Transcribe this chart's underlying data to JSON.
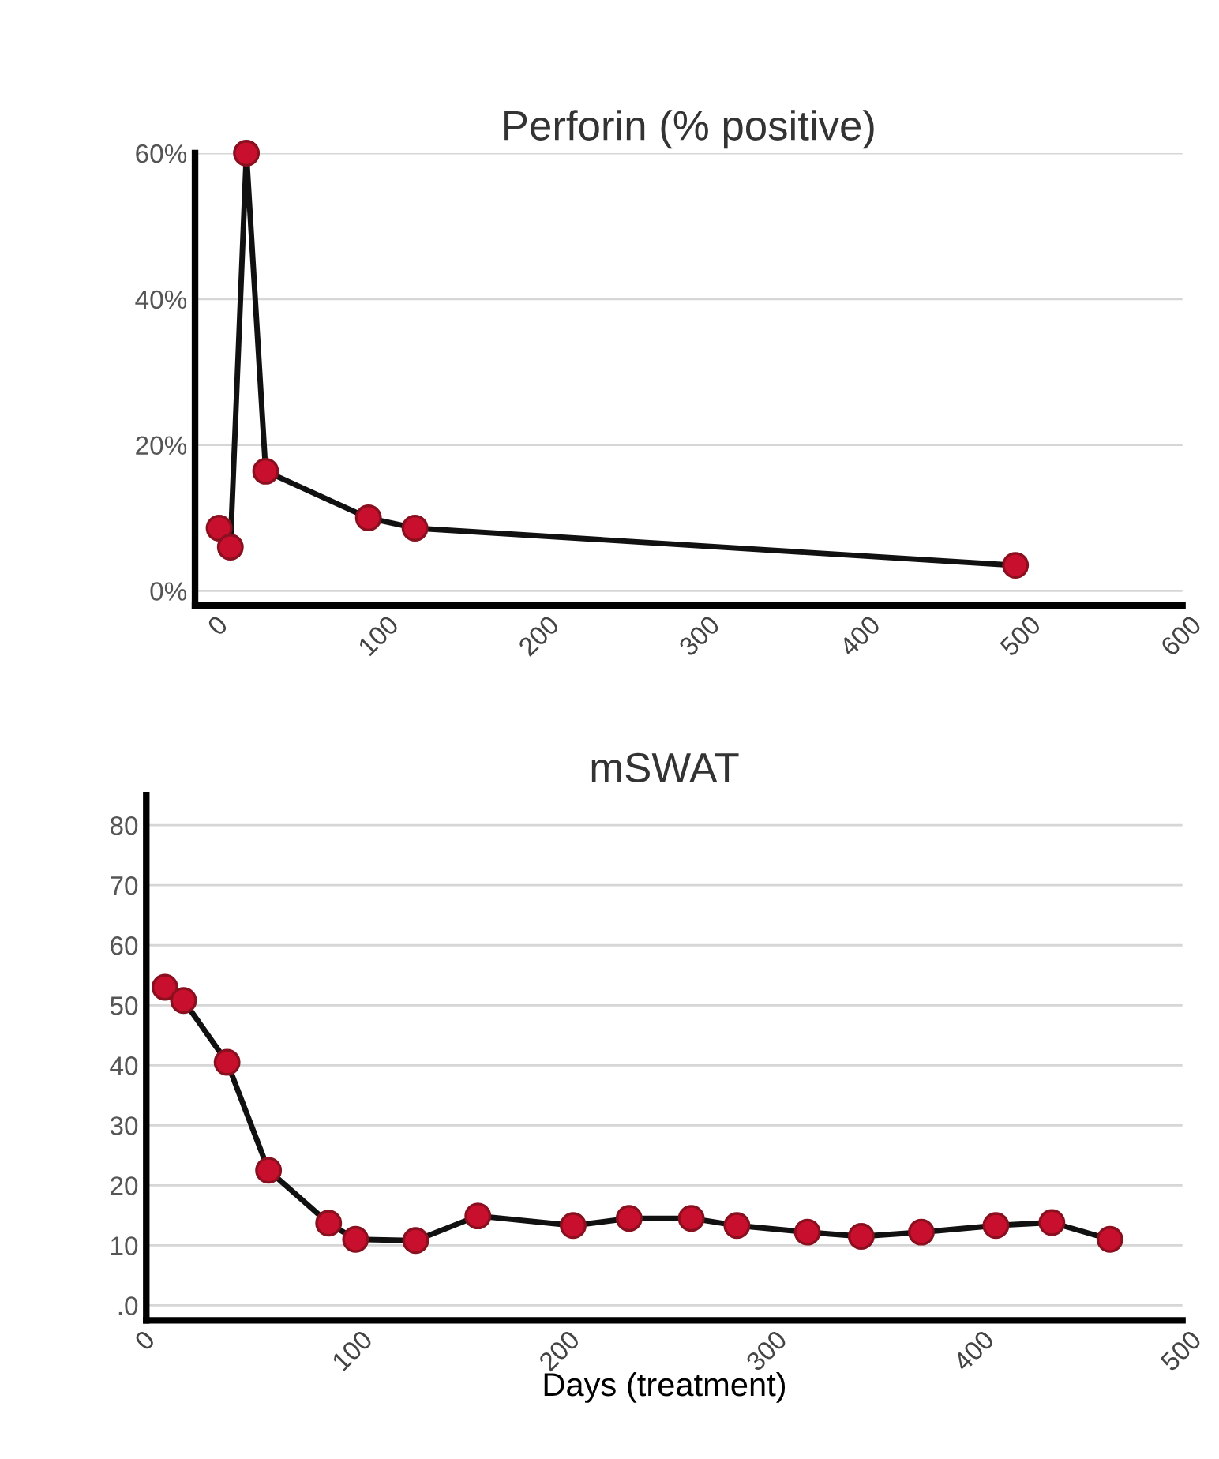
{
  "chart_data": [
    {
      "type": "line",
      "title": "Perforin (% positive)",
      "x": [
        0,
        7,
        17,
        29,
        93,
        122,
        496
      ],
      "series": [
        {
          "color": "#c8102e",
          "values": [
            8.6,
            6,
            60,
            16.4,
            10,
            8.6,
            3.5
          ]
        }
      ],
      "marker": "circle",
      "line_style": "solid",
      "xlim": [
        -15,
        600
      ],
      "xticks": [
        0,
        100,
        200,
        300,
        400,
        500,
        600
      ],
      "ylim": [
        -2,
        60
      ],
      "yticks": [
        {
          "value": 0,
          "label": "0%"
        },
        {
          "value": 20,
          "label": "20%"
        },
        {
          "value": 40,
          "label": "40%"
        },
        {
          "value": 60,
          "label": "60%"
        }
      ],
      "grid": "y",
      "legend": false
    },
    {
      "type": "line",
      "title": "mSWAT",
      "xlabel": "Days (treatment)",
      "x": [
        9,
        18,
        39,
        59,
        88,
        101,
        130,
        160,
        206,
        233,
        263,
        285,
        319,
        345,
        374,
        410,
        437,
        465
      ],
      "series": [
        {
          "color": "#c8102e",
          "values": [
            53,
            50.8,
            40.5,
            22.5,
            13.7,
            11,
            10.8,
            14.9,
            13.3,
            14.5,
            14.5,
            13.3,
            12.2,
            11.5,
            12.2,
            13.3,
            13.8,
            11
          ]
        }
      ],
      "marker": "circle",
      "line_style": "solid",
      "xlim": [
        0,
        500
      ],
      "xticks": [
        0,
        100,
        200,
        300,
        400,
        500
      ],
      "ylim": [
        -2.5,
        85
      ],
      "yticks": [
        {
          "value": 0,
          "label": ".0"
        },
        10,
        20,
        30,
        40,
        50,
        60,
        70,
        80
      ],
      "grid": "y",
      "legend": false
    }
  ]
}
